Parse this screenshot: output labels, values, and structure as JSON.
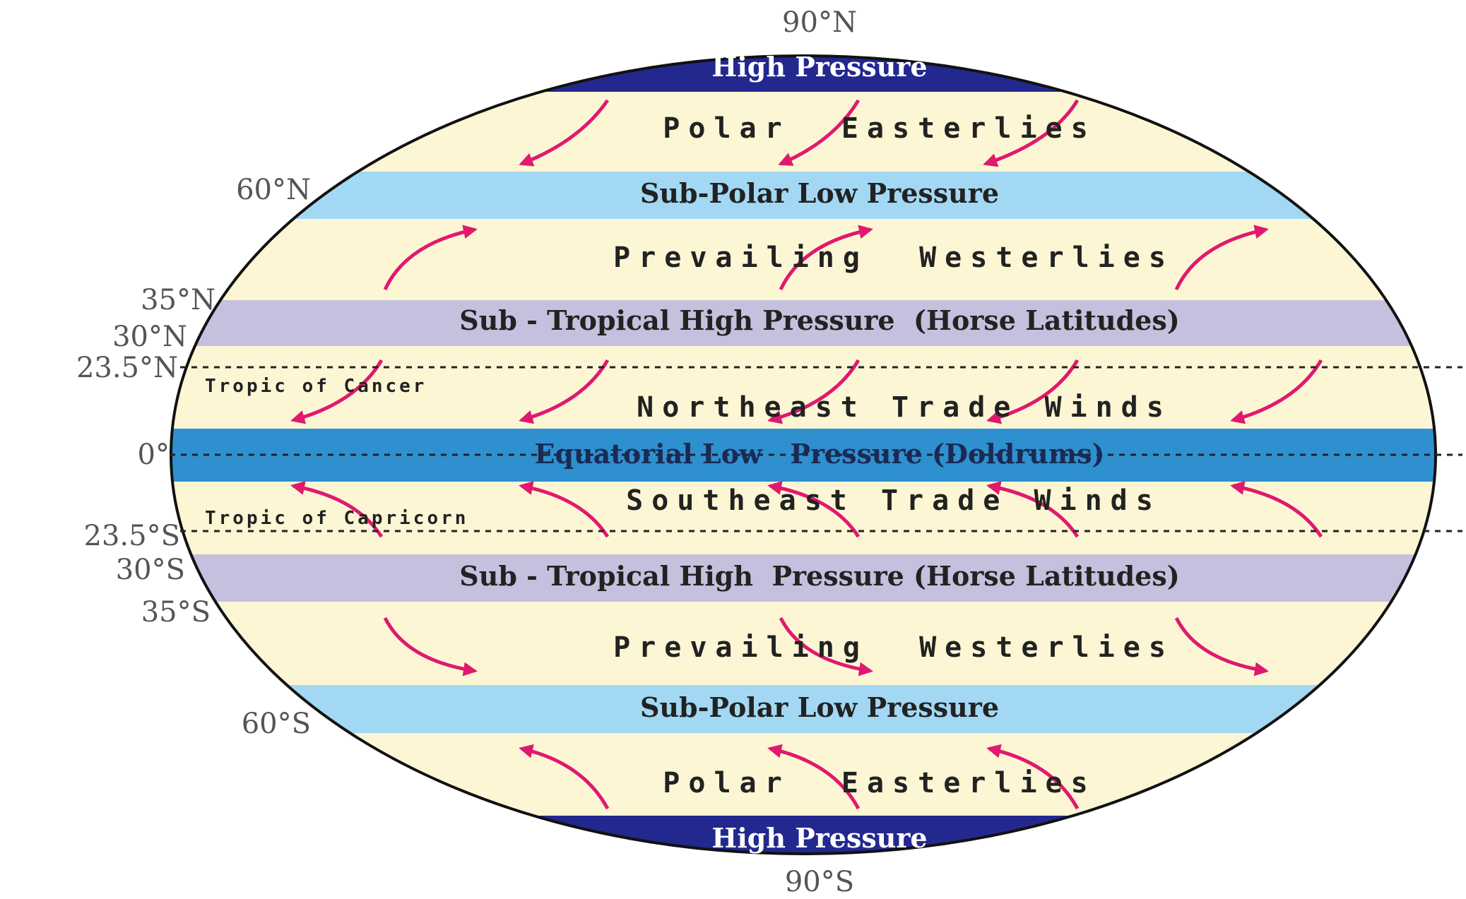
{
  "pole_labels": {
    "north": "90°N",
    "south": "90°S"
  },
  "latitude_labels": {
    "n60": "60°N",
    "n35": "35°N",
    "n30": "30°N",
    "n23": "23.5°N",
    "eq": "0°",
    "s23": "23.5°S",
    "s30": "30°S",
    "s35": "35°S",
    "s60": "60°S"
  },
  "pressure_belts": {
    "north_high": "High Pressure",
    "north_subpolar": "Sub-Polar Low Pressure",
    "north_subtropical": "Sub - Tropical High Pressure  (Horse Latitudes)",
    "equatorial": "Equatorial Low   Pressure (Doldrums)",
    "south_subtropical": "Sub - Tropical High  Pressure (Horse Latitudes)",
    "south_subpolar": "Sub-Polar Low Pressure",
    "south_high": "High Pressure"
  },
  "wind_belts": {
    "north_polar": "Polar  Easterlies",
    "north_westerlies": "Prevailing  Westerlies",
    "northeast_trade": "Northeast Trade Winds",
    "southeast_trade": "Southeast Trade Winds",
    "south_westerlies": "Prevailing  Westerlies",
    "south_polar": "Polar  Easterlies"
  },
  "tropics": {
    "cancer": "Tropic of Cancer",
    "capricorn": "Tropic of Capricorn"
  },
  "colors": {
    "high_pressure": "#23288f",
    "subpolar_low": "#a2d8f4",
    "subtropical_high": "#c4c0dd",
    "equatorial_low": "#2e90cf",
    "wind_zone": "#fdf6d4",
    "arrow": "#e0196f"
  }
}
